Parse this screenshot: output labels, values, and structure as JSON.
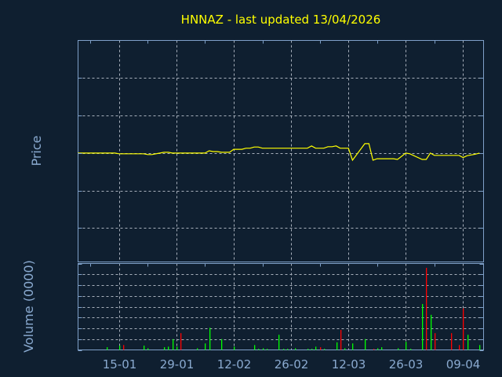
{
  "chart_data": [
    {
      "type": "line",
      "title": "HNNAZ - last updated 13/04/2026",
      "ylabel": "Price",
      "xlim": [
        "2026-01-05",
        "2026-04-14"
      ],
      "ylim": [
        22.1,
        28.0
      ],
      "yticks": [
        "23",
        "24",
        "25",
        "26",
        "27"
      ],
      "grid": true,
      "line_color": "#ffff00",
      "points": [
        [
          "2026-01-05",
          25.0
        ],
        [
          "2026-01-14",
          25.0
        ],
        [
          "2026-01-15",
          24.98
        ],
        [
          "2026-01-21",
          24.98
        ],
        [
          "2026-01-22",
          24.96
        ],
        [
          "2026-01-23",
          24.96
        ],
        [
          "2026-01-25",
          25.0
        ],
        [
          "2026-01-26",
          25.02
        ],
        [
          "2026-01-27",
          25.02
        ],
        [
          "2026-01-28",
          25.0
        ],
        [
          "2026-02-05",
          25.0
        ],
        [
          "2026-02-06",
          25.06
        ],
        [
          "2026-02-07",
          25.04
        ],
        [
          "2026-02-08",
          25.04
        ],
        [
          "2026-02-09",
          25.02
        ],
        [
          "2026-02-11",
          25.02
        ],
        [
          "2026-02-12",
          25.1
        ],
        [
          "2026-02-14",
          25.1
        ],
        [
          "2026-02-15",
          25.13
        ],
        [
          "2026-02-16",
          25.13
        ],
        [
          "2026-02-17",
          25.16
        ],
        [
          "2026-02-18",
          25.16
        ],
        [
          "2026-02-19",
          25.13
        ],
        [
          "2026-03-02",
          25.13
        ],
        [
          "2026-03-03",
          25.19
        ],
        [
          "2026-03-04",
          25.13
        ],
        [
          "2026-03-06",
          25.13
        ],
        [
          "2026-03-07",
          25.17
        ],
        [
          "2026-03-08",
          25.17
        ],
        [
          "2026-03-09",
          25.19
        ],
        [
          "2026-03-10",
          25.13
        ],
        [
          "2026-03-12",
          25.13
        ],
        [
          "2026-03-13",
          24.81
        ],
        [
          "2026-03-16",
          25.25
        ],
        [
          "2026-03-17",
          25.25
        ],
        [
          "2026-03-18",
          24.81
        ],
        [
          "2026-03-19",
          24.85
        ],
        [
          "2026-03-23",
          24.85
        ],
        [
          "2026-03-24",
          24.83
        ],
        [
          "2026-03-26",
          25.0
        ],
        [
          "2026-03-27",
          24.98
        ],
        [
          "2026-03-30",
          24.83
        ],
        [
          "2026-03-31",
          24.83
        ],
        [
          "2026-04-01",
          25.0
        ],
        [
          "2026-04-02",
          24.94
        ],
        [
          "2026-04-08",
          24.94
        ],
        [
          "2026-04-09",
          24.88
        ],
        [
          "2026-04-10",
          24.93
        ],
        [
          "2026-04-12",
          24.97
        ],
        [
          "2026-04-13",
          25.0
        ]
      ]
    },
    {
      "type": "bar",
      "ylabel": "Volume (0000)",
      "xlim": [
        "2026-01-05",
        "2026-04-14"
      ],
      "ylim": [
        0,
        1.6
      ],
      "yticks": [
        "0",
        "0.2",
        "0.4",
        "0.6",
        "0.8",
        "1",
        "1.2",
        "1.4",
        "1.6"
      ],
      "xticks": [
        "15-01",
        "29-01",
        "12-02",
        "26-02",
        "12-03",
        "26-03",
        "09-04"
      ],
      "xtick_dates": [
        "2026-01-15",
        "2026-01-29",
        "2026-02-12",
        "2026-02-26",
        "2026-03-12",
        "2026-03-26",
        "2026-04-09"
      ],
      "grid": true,
      "colors": {
        "up": "#00ff00",
        "down": "#ff0000"
      },
      "bars": [
        [
          "2026-01-12",
          0.05,
          "up"
        ],
        [
          "2026-01-15",
          0.08,
          "up"
        ],
        [
          "2026-01-16",
          0.09,
          "down"
        ],
        [
          "2026-01-21",
          0.08,
          "up"
        ],
        [
          "2026-01-22",
          0.03,
          "up"
        ],
        [
          "2026-01-26",
          0.05,
          "up"
        ],
        [
          "2026-01-27",
          0.06,
          "up"
        ],
        [
          "2026-01-28",
          0.2,
          "up"
        ],
        [
          "2026-01-29",
          0.06,
          "up"
        ],
        [
          "2026-01-30",
          0.31,
          "down"
        ],
        [
          "2026-02-03",
          0.03,
          "up"
        ],
        [
          "2026-02-05",
          0.12,
          "up"
        ],
        [
          "2026-02-06",
          0.41,
          "up"
        ],
        [
          "2026-02-09",
          0.2,
          "up"
        ],
        [
          "2026-02-12",
          0.06,
          "up"
        ],
        [
          "2026-02-17",
          0.09,
          "up"
        ],
        [
          "2026-02-18",
          0.02,
          "up"
        ],
        [
          "2026-02-19",
          0.03,
          "up"
        ],
        [
          "2026-02-20",
          0.02,
          "up"
        ],
        [
          "2026-02-23",
          0.28,
          "up"
        ],
        [
          "2026-02-24",
          0.02,
          "up"
        ],
        [
          "2026-02-25",
          0.02,
          "up"
        ],
        [
          "2026-02-27",
          0.03,
          "up"
        ],
        [
          "2026-03-02",
          0.02,
          "up"
        ],
        [
          "2026-03-03",
          0.02,
          "up"
        ],
        [
          "2026-03-04",
          0.06,
          "up"
        ],
        [
          "2026-03-05",
          0.05,
          "down"
        ],
        [
          "2026-03-06",
          0.02,
          "up"
        ],
        [
          "2026-03-09",
          0.14,
          "up"
        ],
        [
          "2026-03-10",
          0.37,
          "down"
        ],
        [
          "2026-03-11",
          0.03,
          "up"
        ],
        [
          "2026-03-13",
          0.12,
          "up"
        ],
        [
          "2026-03-16",
          0.2,
          "up"
        ],
        [
          "2026-03-18",
          0.02,
          "down"
        ],
        [
          "2026-03-19",
          0.03,
          "up"
        ],
        [
          "2026-03-20",
          0.05,
          "up"
        ],
        [
          "2026-03-24",
          0.03,
          "up"
        ],
        [
          "2026-03-26",
          0.15,
          "up"
        ],
        [
          "2026-03-27",
          0.02,
          "up"
        ],
        [
          "2026-03-30",
          0.85,
          "up"
        ],
        [
          "2026-03-31",
          1.52,
          "down"
        ],
        [
          "2026-04-01",
          0.65,
          "up"
        ],
        [
          "2026-04-02",
          0.31,
          "down"
        ],
        [
          "2026-04-06",
          0.31,
          "down"
        ],
        [
          "2026-04-08",
          0.09,
          "down"
        ],
        [
          "2026-04-09",
          0.77,
          "down"
        ],
        [
          "2026-04-10",
          0.28,
          "up"
        ],
        [
          "2026-04-13",
          0.09,
          "up"
        ]
      ]
    }
  ]
}
